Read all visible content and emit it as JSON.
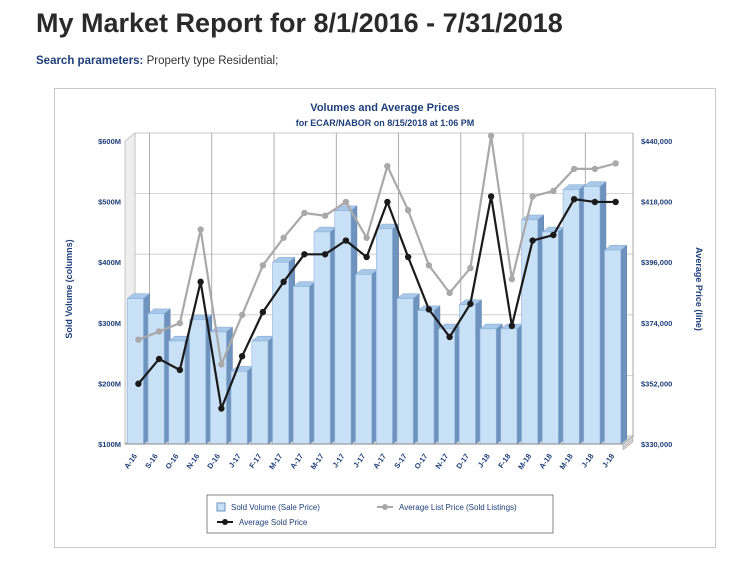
{
  "report": {
    "title": "My Market Report for 8/1/2016 - 7/31/2018",
    "search_label": "Search parameters:",
    "search_value": "Property type Residential;"
  },
  "colors": {
    "bar_front": "#c9e1f7",
    "bar_side": "#6f93bf",
    "bar_top": "#a8c8ea",
    "list_line": "#a9a9a9",
    "sold_line": "#1a1a1a",
    "axis_text": "#1f3f7a"
  },
  "chart_data": {
    "type": "bar+line",
    "title": "Volumes and Average Prices",
    "subtitle": "for ECAR/NABOR on 8/15/2018 at 1:06 PM",
    "ylabel_left": "Sold Volume (columns)",
    "ylabel_right": "Average Price (line)",
    "left_ticks": [
      "$600M",
      "$500M",
      "$400M",
      "$300M",
      "$200M",
      "$100M"
    ],
    "left_tick_values": [
      600,
      500,
      400,
      300,
      200,
      100
    ],
    "right_ticks": [
      "$440,000",
      "$418,000",
      "$396,000",
      "$374,000",
      "$352,000",
      "$330,000"
    ],
    "right_tick_values": [
      440000,
      418000,
      396000,
      374000,
      352000,
      330000
    ],
    "left_ylim": [
      100,
      600
    ],
    "right_ylim": [
      330000,
      440000
    ],
    "categories": [
      "A-16",
      "S-16",
      "O-16",
      "N-16",
      "D-16",
      "J-17",
      "F-17",
      "M-17",
      "A-17",
      "M-17",
      "J-17",
      "J-17",
      "A-17",
      "S-17",
      "O-17",
      "N-17",
      "D-17",
      "J-18",
      "F-18",
      "M-18",
      "A-18",
      "M-18",
      "J-18",
      "J-18"
    ],
    "series": [
      {
        "name": "Sold Volume (Sale Price)",
        "kind": "bar",
        "values": [
          340,
          315,
          270,
          305,
          285,
          220,
          270,
          400,
          360,
          450,
          485,
          380,
          455,
          340,
          320,
          290,
          330,
          290,
          290,
          470,
          450,
          520,
          525,
          420
        ]
      },
      {
        "name": "Average List Price (Sold Listings)",
        "kind": "line",
        "values": [
          367000,
          370000,
          373000,
          407000,
          358000,
          376000,
          394000,
          404000,
          413000,
          412000,
          417000,
          404000,
          430000,
          414000,
          394000,
          384000,
          393000,
          441000,
          389000,
          419000,
          421000,
          429000,
          429000,
          431000
        ]
      },
      {
        "name": "Average Sold Price",
        "kind": "line",
        "values": [
          351000,
          360000,
          356000,
          388000,
          342000,
          361000,
          377000,
          388000,
          398000,
          398000,
          403000,
          397000,
          417000,
          397000,
          378000,
          368000,
          380000,
          419000,
          372000,
          403000,
          405000,
          418000,
          417000,
          417000
        ]
      }
    ],
    "legend_position": "bottom",
    "grid": true
  }
}
